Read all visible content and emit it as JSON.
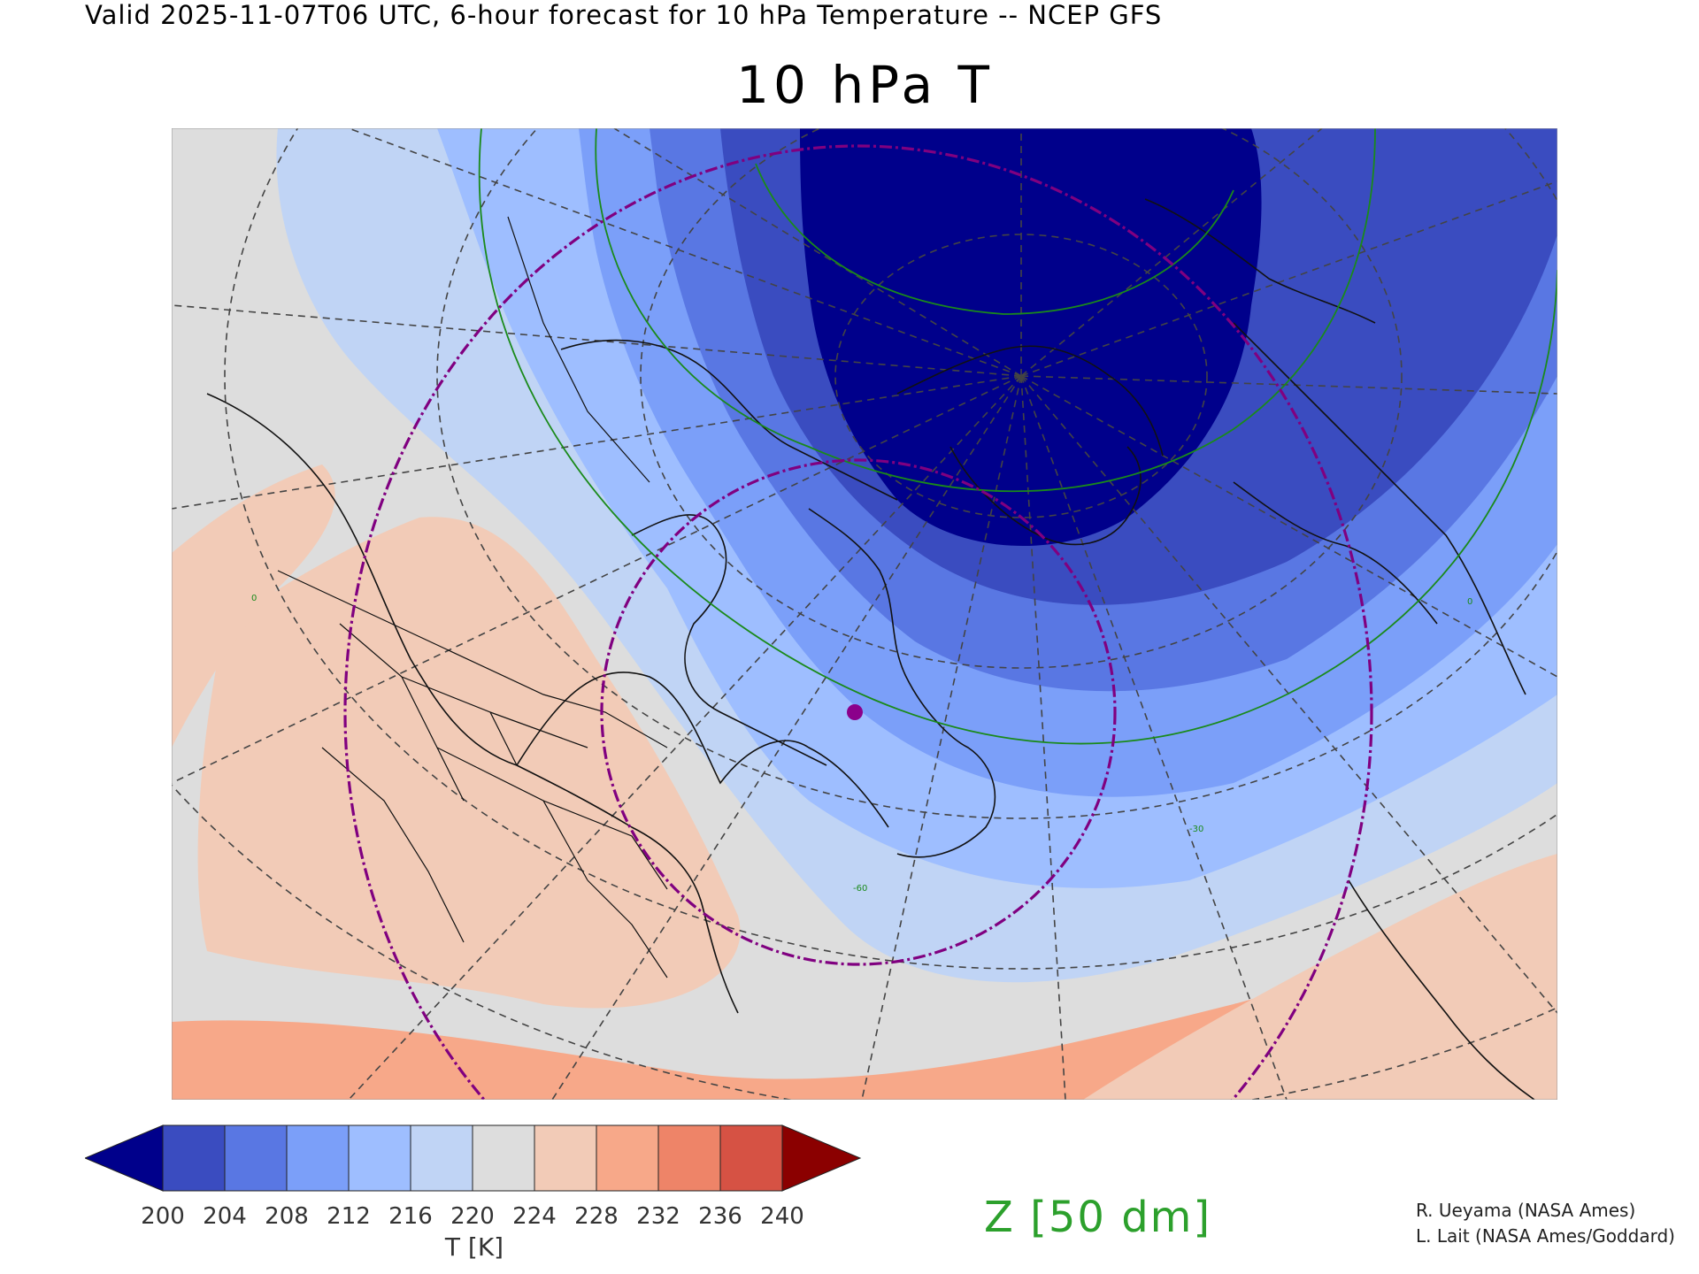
{
  "header": {
    "valid_line": "Valid 2025-11-07T06 UTC, 6-hour forecast for 10 hPa Temperature -- NCEP GFS",
    "title": "10 hPa T"
  },
  "map": {
    "region": "North America / Arctic, polar stereographic",
    "contour_labels": [
      "0",
      "0",
      "-30",
      "-60"
    ],
    "colors": {
      "land_lines": "#111111",
      "graticule": "#444444",
      "geopotential_contours": "#1a8a1a",
      "range_rings": "#800080",
      "site_marker": "#8b008b"
    }
  },
  "colorbar": {
    "ticks": [
      "200",
      "204",
      "208",
      "212",
      "216",
      "220",
      "224",
      "228",
      "232",
      "236",
      "240"
    ],
    "colors": [
      "#00008b",
      "#3a4cc0",
      "#5977e3",
      "#7b9ff9",
      "#9ebeff",
      "#c0d4f5",
      "#dddddd",
      "#f2cbb7",
      "#f7a889",
      "#ee8468",
      "#d65244",
      "#8b0000"
    ],
    "label": "T [K]"
  },
  "contour_legend": "Z [50 dm]",
  "credits": [
    "R. Ueyama (NASA Ames)",
    "L. Lait (NASA Ames/Goddard)"
  ]
}
